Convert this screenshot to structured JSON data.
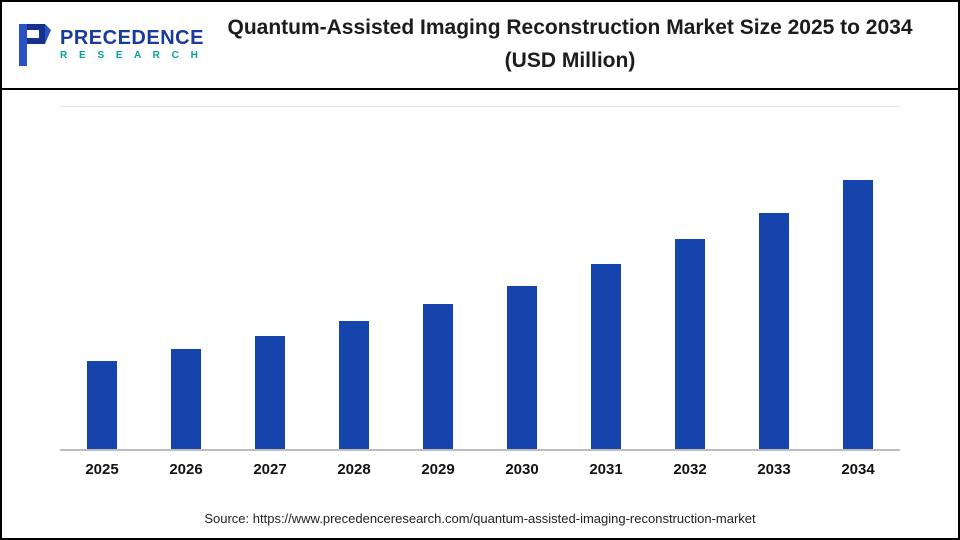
{
  "header": {
    "logo": {
      "primary": "PRECEDENCE",
      "secondary": "R E S E A R C H",
      "primary_color": "#1b3a9e",
      "secondary_color": "#00a39a"
    },
    "title": "Quantum-Assisted Imaging Reconstruction Market Size 2025 to 2034 (USD Million)"
  },
  "chart_data": {
    "type": "bar",
    "title": "Quantum-Assisted Imaging Reconstruction Market Size 2025 to 2034 (USD Million)",
    "categories": [
      "2025",
      "2026",
      "2027",
      "2028",
      "2029",
      "2030",
      "2031",
      "2032",
      "2033",
      "2034"
    ],
    "values": [
      90,
      102,
      116,
      131,
      148,
      167,
      189,
      215,
      242,
      275
    ],
    "xlabel": "",
    "ylabel": "",
    "ylim": [
      0,
      350
    ],
    "bar_color": "#1544ac",
    "grid": false,
    "legend": false
  },
  "footer": {
    "source": "Source: https://www.precedenceresearch.com/quantum-assisted-imaging-reconstruction-market"
  }
}
